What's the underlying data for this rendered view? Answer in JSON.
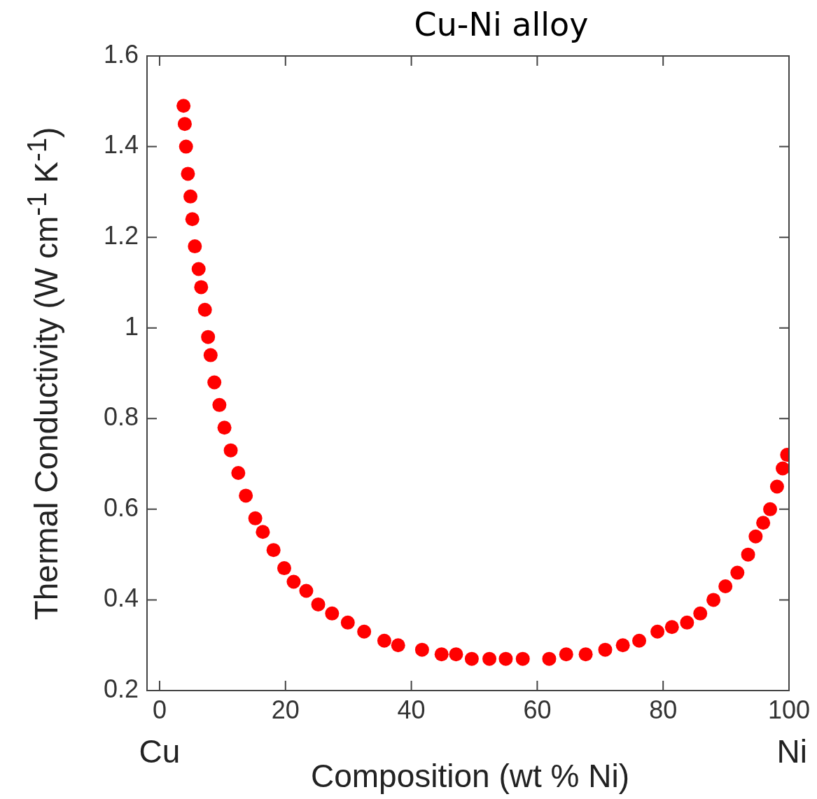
{
  "chart_data": {
    "type": "scatter",
    "title": "Cu-Ni alloy",
    "xlabel": "Composition (wt % Ni)",
    "ylabel": "Thermal Conductivity (W cm$^{-1}$ K$^{-1}$)",
    "x": [
      3.8,
      4.0,
      4.2,
      4.5,
      4.9,
      5.2,
      5.6,
      6.2,
      6.6,
      7.2,
      7.7,
      8.1,
      8.7,
      9.5,
      10.3,
      11.3,
      12.5,
      13.7,
      15.2,
      16.4,
      18.1,
      19.8,
      21.3,
      23.3,
      25.2,
      27.4,
      29.9,
      32.5,
      35.7,
      37.9,
      41.7,
      44.8,
      47.1,
      49.6,
      52.4,
      55.0,
      57.7,
      61.9,
      64.6,
      67.7,
      70.8,
      73.6,
      76.2,
      79.1,
      81.4,
      83.8,
      85.9,
      88.0,
      89.9,
      91.8,
      93.5,
      94.7,
      95.9,
      97.0,
      98.1,
      99.0,
      99.7
    ],
    "series": [
      {
        "color": "#ff0000",
        "values": [
          1.49,
          1.45,
          1.4,
          1.34,
          1.29,
          1.24,
          1.18,
          1.13,
          1.09,
          1.04,
          0.98,
          0.94,
          0.88,
          0.83,
          0.78,
          0.73,
          0.68,
          0.63,
          0.58,
          0.55,
          0.51,
          0.47,
          0.44,
          0.42,
          0.39,
          0.37,
          0.35,
          0.33,
          0.31,
          0.3,
          0.29,
          0.28,
          0.28,
          0.27,
          0.27,
          0.27,
          0.27,
          0.27,
          0.28,
          0.28,
          0.29,
          0.3,
          0.31,
          0.33,
          0.34,
          0.35,
          0.37,
          0.4,
          0.43,
          0.46,
          0.5,
          0.54,
          0.57,
          0.6,
          0.65,
          0.69,
          0.72
        ]
      }
    ],
    "xlim": [
      -2,
      100
    ],
    "xticks": [
      0,
      20,
      40,
      60,
      80,
      100
    ],
    "ylim": [
      0.2,
      1.6
    ],
    "yticks": [
      0.2,
      0.4,
      0.6,
      0.8,
      1,
      1.2,
      1.4,
      1.6
    ],
    "grid": false,
    "legend": false,
    "marker": "circle",
    "annotations": [
      "Cu",
      "Ni"
    ]
  }
}
